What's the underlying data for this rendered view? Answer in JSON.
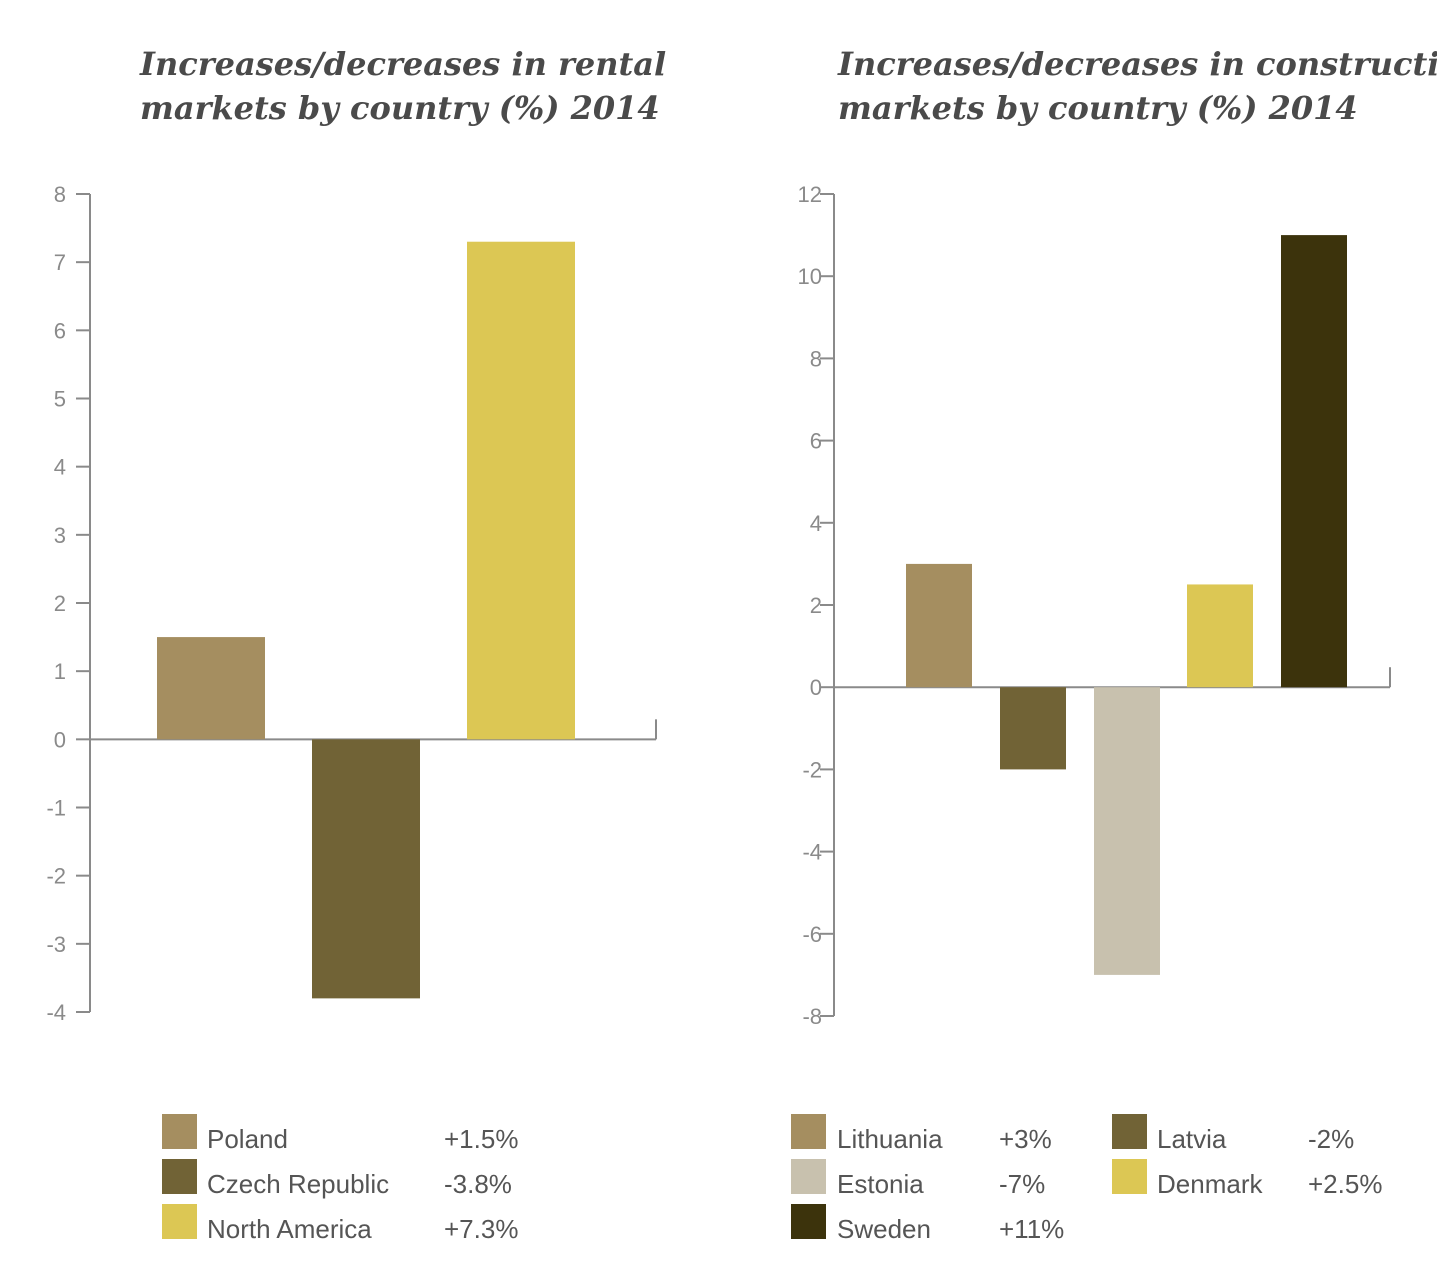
{
  "chart_data": [
    {
      "type": "bar",
      "title_lines": [
        "Increases/decreases in rental",
        "markets by country (%) 2014"
      ],
      "categories": [
        "Poland",
        "Czech Republic",
        "North America"
      ],
      "values": [
        1.5,
        -3.8,
        7.3
      ],
      "value_labels": [
        "+1.5%",
        "-3.8%",
        "+7.3%"
      ],
      "colors": [
        "#a58e60",
        "#716336",
        "#dcc754"
      ],
      "ylim": [
        -4,
        8
      ],
      "yticks": [
        8,
        7,
        6,
        5,
        4,
        3,
        2,
        1,
        0,
        -1,
        -2,
        -3,
        -4
      ],
      "legend_position": "bottom"
    },
    {
      "type": "bar",
      "title_lines": [
        "Increases/decreases in construction",
        "markets by country (%) 2014"
      ],
      "categories": [
        "Lithuania",
        "Latvia",
        "Estonia",
        "Denmark",
        "Sweden"
      ],
      "values": [
        3,
        -2,
        -7,
        2.5,
        11
      ],
      "value_labels": [
        "+3%",
        "-2%",
        "-7%",
        "+2.5%",
        "+11%"
      ],
      "colors": [
        "#a58e60",
        "#716336",
        "#c8c1ae",
        "#dcc754",
        "#3c330c"
      ],
      "ylim": [
        -8,
        12
      ],
      "yticks": [
        12,
        10,
        8,
        6,
        4,
        2,
        0,
        -2,
        -4,
        -6,
        -8
      ],
      "legend_position": "bottom"
    }
  ]
}
